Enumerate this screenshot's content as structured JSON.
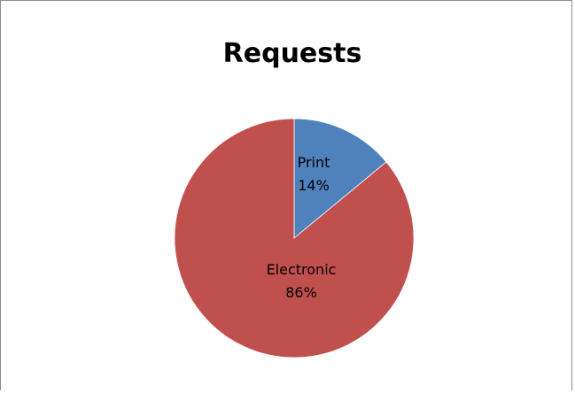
{
  "chart_data": {
    "type": "pie",
    "title": "Requests",
    "slices": [
      {
        "label": "Print",
        "value": 14,
        "value_text": "14%",
        "color": "#4f81bd"
      },
      {
        "label": "Electronic",
        "value": 86,
        "value_text": "86%",
        "color": "#c0504d"
      }
    ],
    "legend": "none",
    "start": "12 o'clock, clockwise"
  }
}
